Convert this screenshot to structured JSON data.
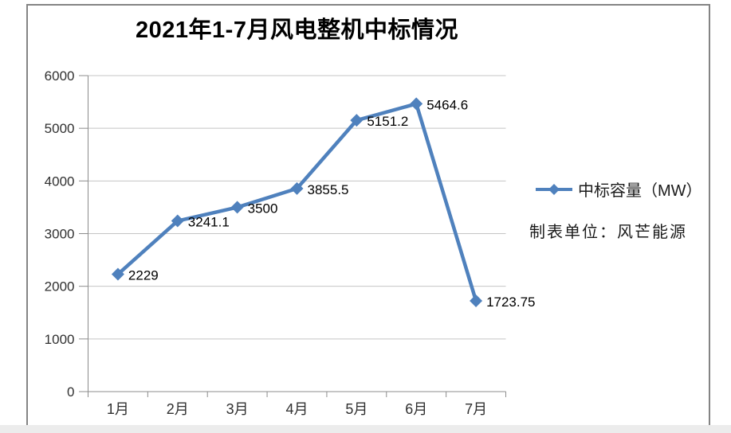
{
  "title": "2021年1-7月风电整机中标情况",
  "legend": {
    "label": "中标容量（MW）"
  },
  "note": "制表单位：风芒能源",
  "chart_data": {
    "type": "line",
    "title": "2021年1-7月风电整机中标情况",
    "categories": [
      "1月",
      "2月",
      "3月",
      "4月",
      "5月",
      "6月",
      "7月"
    ],
    "series": [
      {
        "name": "中标容量（MW）",
        "values": [
          2229,
          3241.1,
          3500,
          3855.5,
          5151.2,
          5464.6,
          1723.75
        ],
        "labels": [
          "2229",
          "3241.1",
          "3500",
          "3855.5",
          "5151.2",
          "5464.6",
          "1723.75"
        ]
      }
    ],
    "xlabel": "",
    "ylabel": "",
    "ylim": [
      0,
      6000
    ],
    "ytick_interval": 1000,
    "yticks": [
      "0",
      "1000",
      "2000",
      "3000",
      "4000",
      "5000",
      "6000"
    ],
    "grid": "horizontal",
    "legend_position": "right",
    "marker": "diamond",
    "annotation": "制表单位：风芒能源",
    "colors": {
      "line": "#4F81BD",
      "gridline": "#C4C4C4",
      "axis": "#8C8C8C",
      "tick_text": "#303030",
      "data_label_text": "#000000",
      "frame_border": "#848484",
      "bottom_strip": "#ECECEC"
    }
  }
}
